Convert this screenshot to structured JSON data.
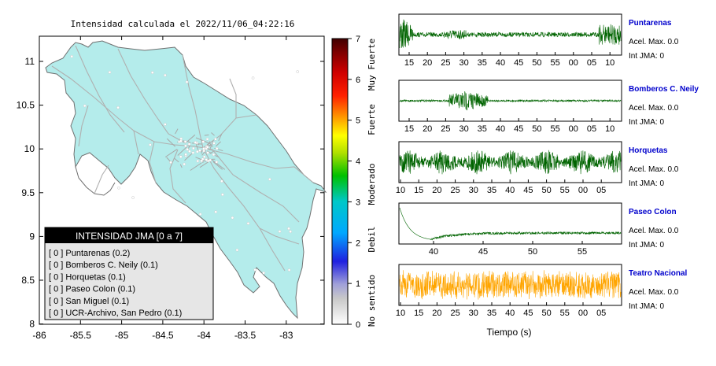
{
  "map": {
    "title": "Intensidad calculada el 2022/11/06_04:22:16",
    "x_ticks": [
      "-86",
      "-85.5",
      "-85",
      "-84.5",
      "-84",
      "-83.5",
      "-83"
    ],
    "y_ticks": [
      "11",
      "10.5",
      "10",
      "9.5",
      "9",
      "8.5",
      "8"
    ],
    "land_color": "#b4eceb",
    "legend": {
      "title": "INTENSIDAD JMA [0 a 7]",
      "items": [
        "[ 0 ]  Puntarenas (0.2)",
        "[ 0 ]  Bomberos C. Neily (0.1)",
        "[ 0 ]  Horquetas (0.1)",
        "[ 0 ]  Paseo Colon (0.1)",
        "[ 0 ]  San Miguel (0.1)",
        "[ 0 ]  UCR-Archivo, San Pedro (0.1)"
      ]
    }
  },
  "colorbar": {
    "ticks": [
      "7",
      "6",
      "5",
      "4",
      "3",
      "2",
      "1",
      "0"
    ],
    "levels": [
      "Muy Fuerte",
      "Fuerte",
      "Moderado",
      "Debil",
      "No sentido"
    ]
  },
  "chart_data": [
    {
      "type": "line",
      "name": "Puntarenas",
      "color": "#006400",
      "x_tick_labels": [
        "15",
        "20",
        "25",
        "30",
        "35",
        "40",
        "45",
        "50",
        "55",
        "00",
        "05",
        "10"
      ],
      "peak_accel": "Acel. Max. 0.0",
      "jma": "Int JMA: 0"
    },
    {
      "type": "line",
      "name": "Bomberos C. Neily",
      "color": "#006400",
      "x_tick_labels": [
        "15",
        "20",
        "25",
        "30",
        "35",
        "40",
        "45",
        "50",
        "55",
        "00",
        "05",
        "10"
      ],
      "peak_accel": "Acel. Max. 0.0",
      "jma": "Int JMA: 0"
    },
    {
      "type": "line",
      "name": "Horquetas",
      "color": "#006400",
      "x_tick_labels": [
        "10",
        "15",
        "20",
        "25",
        "30",
        "35",
        "40",
        "45",
        "50",
        "55",
        "00",
        "05"
      ],
      "peak_accel": "Acel. Max. 0.0",
      "jma": "Int JMA: 0"
    },
    {
      "type": "line",
      "name": "Paseo Colon",
      "color": "#006400",
      "x_tick_labels": [
        "40",
        "45",
        "50",
        "55"
      ],
      "peak_accel": "Acel. Max. 0.0",
      "jma": "Int JMA: 0"
    },
    {
      "type": "line",
      "name": "Teatro Nacional",
      "color": "#ffa500",
      "x_tick_labels": [
        "10",
        "15",
        "20",
        "25",
        "30",
        "35",
        "40",
        "45",
        "50",
        "55",
        "00",
        "05"
      ],
      "peak_accel": "Acel. Max. 0.0",
      "jma": "Int JMA: 0",
      "xlabel": "Tiempo (s)"
    }
  ]
}
